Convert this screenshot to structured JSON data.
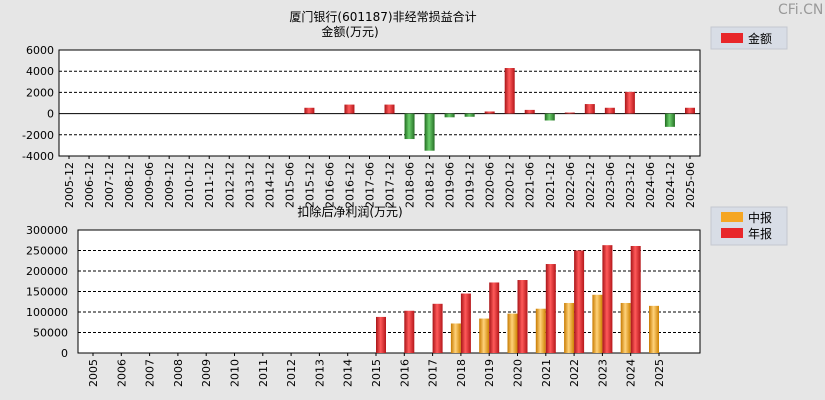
{
  "watermark": "CFi.CN",
  "chart_data": [
    {
      "type": "bar",
      "title": "厦门银行(601187)非经常损益合计",
      "subtitle": "金额(万元)",
      "legend": {
        "position": "top-right",
        "entries": [
          "金额"
        ]
      },
      "ylim": [
        -4000,
        6000
      ],
      "yticks": [
        -4000,
        -2000,
        0,
        2000,
        4000,
        6000
      ],
      "grid": true,
      "colors": {
        "positive": "#e8262a",
        "negative": "#3a9b3a"
      },
      "categories": [
        "2005-12",
        "2006-12",
        "2007-12",
        "2008-12",
        "2009-06",
        "2009-12",
        "2010-12",
        "2011-12",
        "2012-12",
        "2013-12",
        "2014-12",
        "2015-06",
        "2015-12",
        "2016-06",
        "2016-12",
        "2017-06",
        "2017-12",
        "2018-06",
        "2018-12",
        "2019-06",
        "2019-12",
        "2020-06",
        "2020-12",
        "2021-06",
        "2021-12",
        "2022-06",
        "2022-12",
        "2023-06",
        "2023-12",
        "2024-06",
        "2024-12",
        "2025-06"
      ],
      "series": [
        {
          "values": [
            null,
            null,
            null,
            null,
            null,
            null,
            null,
            null,
            null,
            null,
            null,
            null,
            550,
            null,
            850,
            null,
            850,
            -2400,
            -3500,
            -350,
            -300,
            200,
            4300,
            350,
            -650,
            100,
            900,
            550,
            2050,
            null,
            -1250,
            550
          ]
        }
      ]
    },
    {
      "type": "bar",
      "title": "扣除后净利润(万元)",
      "legend": {
        "position": "top-right",
        "entries": [
          "中报",
          "年报"
        ]
      },
      "ylim": [
        0,
        300000
      ],
      "yticks": [
        0,
        50000,
        100000,
        150000,
        200000,
        250000,
        300000
      ],
      "grid": true,
      "colors": {
        "中报": "#f5a623",
        "年报": "#e8262a"
      },
      "categories": [
        "2005",
        "2006",
        "2007",
        "2008",
        "2009",
        "2010",
        "2011",
        "2012",
        "2013",
        "2014",
        "2015",
        "2016",
        "2017",
        "2018",
        "2019",
        "2020",
        "2021",
        "2022",
        "2023",
        "2024",
        "2025"
      ],
      "series": [
        {
          "name": "中报",
          "values": [
            null,
            null,
            null,
            null,
            null,
            null,
            null,
            null,
            null,
            null,
            null,
            null,
            null,
            72000,
            84000,
            96000,
            108000,
            122000,
            142000,
            122000,
            115000
          ]
        },
        {
          "name": "年报",
          "values": [
            null,
            null,
            null,
            null,
            null,
            null,
            null,
            null,
            null,
            null,
            88000,
            103000,
            120000,
            145000,
            172000,
            178000,
            217000,
            250000,
            263000,
            261000,
            null
          ]
        }
      ]
    }
  ]
}
